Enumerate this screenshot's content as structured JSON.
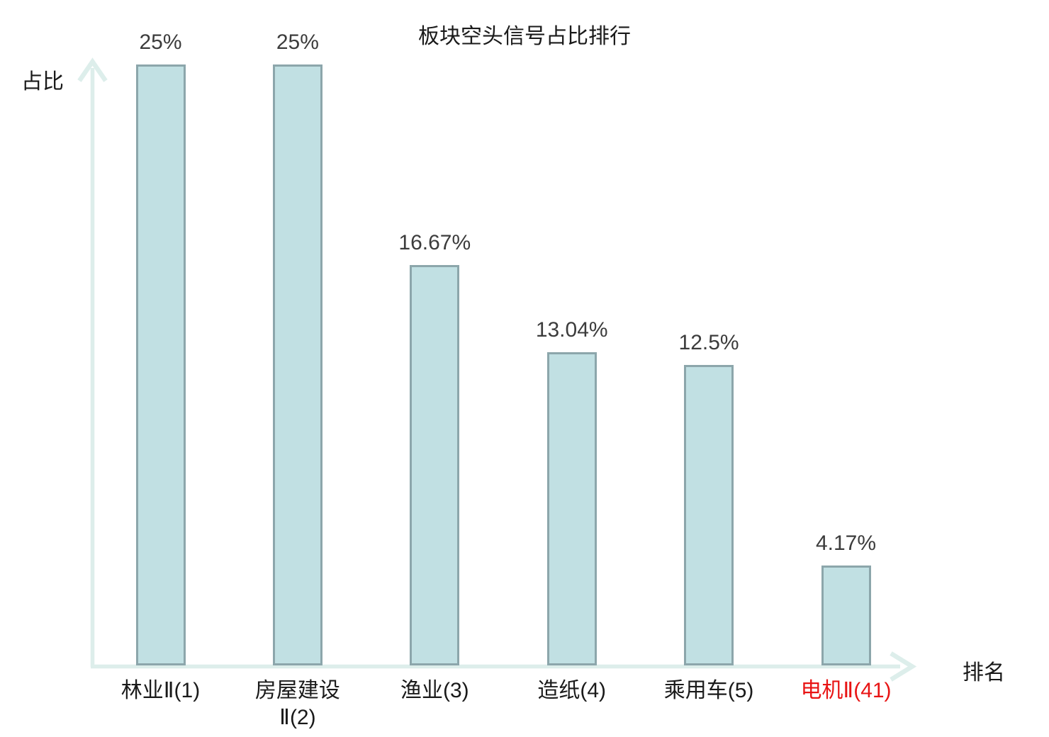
{
  "chart_data": {
    "type": "bar",
    "title": "板块空头信号占比排行",
    "xlabel": "排名",
    "ylabel": "占比",
    "categories": [
      "林业Ⅱ(1)",
      "房屋建设Ⅱ(2)",
      "渔业(3)",
      "造纸(4)",
      "乘用车(5)",
      "电机Ⅱ(41)"
    ],
    "category_lines": [
      [
        "林业Ⅱ(1)"
      ],
      [
        "房屋建设",
        "Ⅱ(2)"
      ],
      [
        "渔业(3)"
      ],
      [
        "造纸(4)"
      ],
      [
        "乘用车(5)"
      ],
      [
        "电机Ⅱ(41)"
      ]
    ],
    "values": [
      25,
      25,
      16.67,
      13.04,
      12.5,
      4.17
    ],
    "value_labels": [
      "25%",
      "25%",
      "16.67%",
      "13.04%",
      "12.5%",
      "4.17%"
    ],
    "ylim": [
      0,
      25
    ],
    "grid": false,
    "legend": false,
    "highlight_index": 5,
    "colors": {
      "bar_fill": "#c1e0e3",
      "bar_border": "#8ca6ab",
      "axis": "#ddeeeb",
      "title_text": "#1a1a1a",
      "value_label": "#3c3c3c",
      "category_label": "#1a1a1a",
      "highlight_label": "#e81414"
    }
  }
}
